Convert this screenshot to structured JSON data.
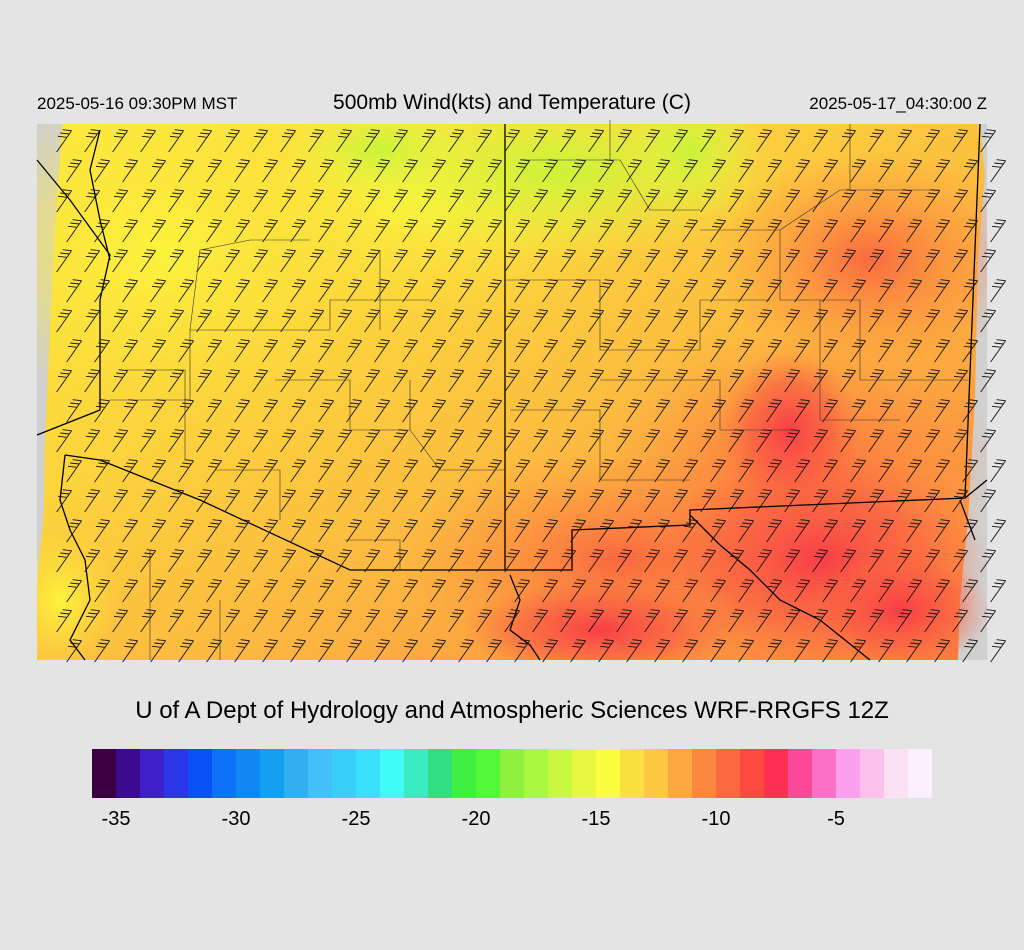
{
  "header": {
    "local_time": "2025-05-16 09:30PM MST",
    "title": "500mb Wind(kts) and Temperature (C)",
    "utc_time": "2025-05-17_04:30:00 Z"
  },
  "credit": "U of A Dept of Hydrology and Atmospheric Sciences WRF-RRGFS 12Z",
  "colorbar": {
    "min": -36,
    "max": -1,
    "colors": [
      "#3a0040",
      "#3c0a8c",
      "#3e20c8",
      "#2a36e8",
      "#0a52f8",
      "#0c70f8",
      "#1088f4",
      "#14a0f0",
      "#30b0f0",
      "#44c0f8",
      "#38d0f8",
      "#38e0fc",
      "#40fcf8",
      "#38ecc0",
      "#30e080",
      "#40f040",
      "#50f838",
      "#90f040",
      "#a8f840",
      "#c8f840",
      "#e8f840",
      "#fcfc40",
      "#fce040",
      "#fcc840",
      "#fca840",
      "#fc8840",
      "#fc6840",
      "#fc4a40",
      "#fc3050",
      "#fc4898",
      "#fc70c8",
      "#fca0f0",
      "#fcc0ec",
      "#fce0f4",
      "#fcf0fc"
    ],
    "tick_labels": [
      "-35",
      "-30",
      "-25",
      "-20",
      "-15",
      "-10",
      "-5"
    ],
    "tick_values": [
      -35,
      -30,
      -25,
      -20,
      -15,
      -10,
      -5
    ]
  },
  "map": {
    "field": "500mb temperature (C)",
    "overlay": "wind barbs (kts)"
  }
}
